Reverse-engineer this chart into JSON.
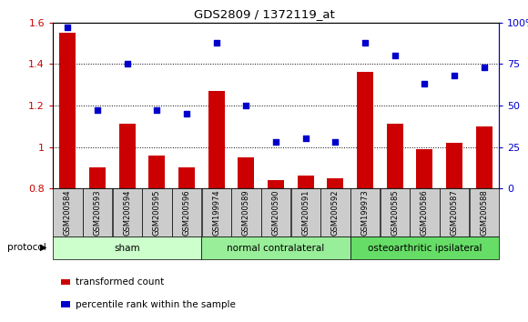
{
  "title": "GDS2809 / 1372119_at",
  "categories": [
    "GSM200584",
    "GSM200593",
    "GSM200594",
    "GSM200595",
    "GSM200596",
    "GSM199974",
    "GSM200589",
    "GSM200590",
    "GSM200591",
    "GSM200592",
    "GSM199973",
    "GSM200585",
    "GSM200586",
    "GSM200587",
    "GSM200588"
  ],
  "bar_values": [
    1.55,
    0.9,
    1.11,
    0.96,
    0.9,
    1.27,
    0.95,
    0.84,
    0.86,
    0.85,
    1.36,
    1.11,
    0.99,
    1.02,
    1.1
  ],
  "dot_values": [
    97,
    47,
    75,
    47,
    45,
    88,
    50,
    28,
    30,
    28,
    88,
    80,
    63,
    68,
    73
  ],
  "bar_color": "#cc0000",
  "dot_color": "#0000cc",
  "ylim_left": [
    0.8,
    1.6
  ],
  "ylim_right": [
    0,
    100
  ],
  "yticks_left": [
    0.8,
    1.0,
    1.2,
    1.4,
    1.6
  ],
  "ytick_labels_left": [
    "0.8",
    "1",
    "1.2",
    "1.4",
    "1.6"
  ],
  "yticks_right": [
    0,
    25,
    50,
    75,
    100
  ],
  "ytick_labels_right": [
    "0",
    "25",
    "50",
    "75",
    "100%"
  ],
  "grid_lines": [
    1.0,
    1.2,
    1.4
  ],
  "groups": [
    {
      "label": "sham",
      "start": 0,
      "end": 5
    },
    {
      "label": "normal contralateral",
      "start": 5,
      "end": 10
    },
    {
      "label": "osteoarthritic ipsilateral",
      "start": 10,
      "end": 15
    }
  ],
  "group_colors": [
    "#ccffcc",
    "#99ee99",
    "#66dd66"
  ],
  "protocol_label": "protocol",
  "legend_bar_label": "transformed count",
  "legend_dot_label": "percentile rank within the sample",
  "tick_label_bg": "#cccccc",
  "bar_bottom": 0.8
}
